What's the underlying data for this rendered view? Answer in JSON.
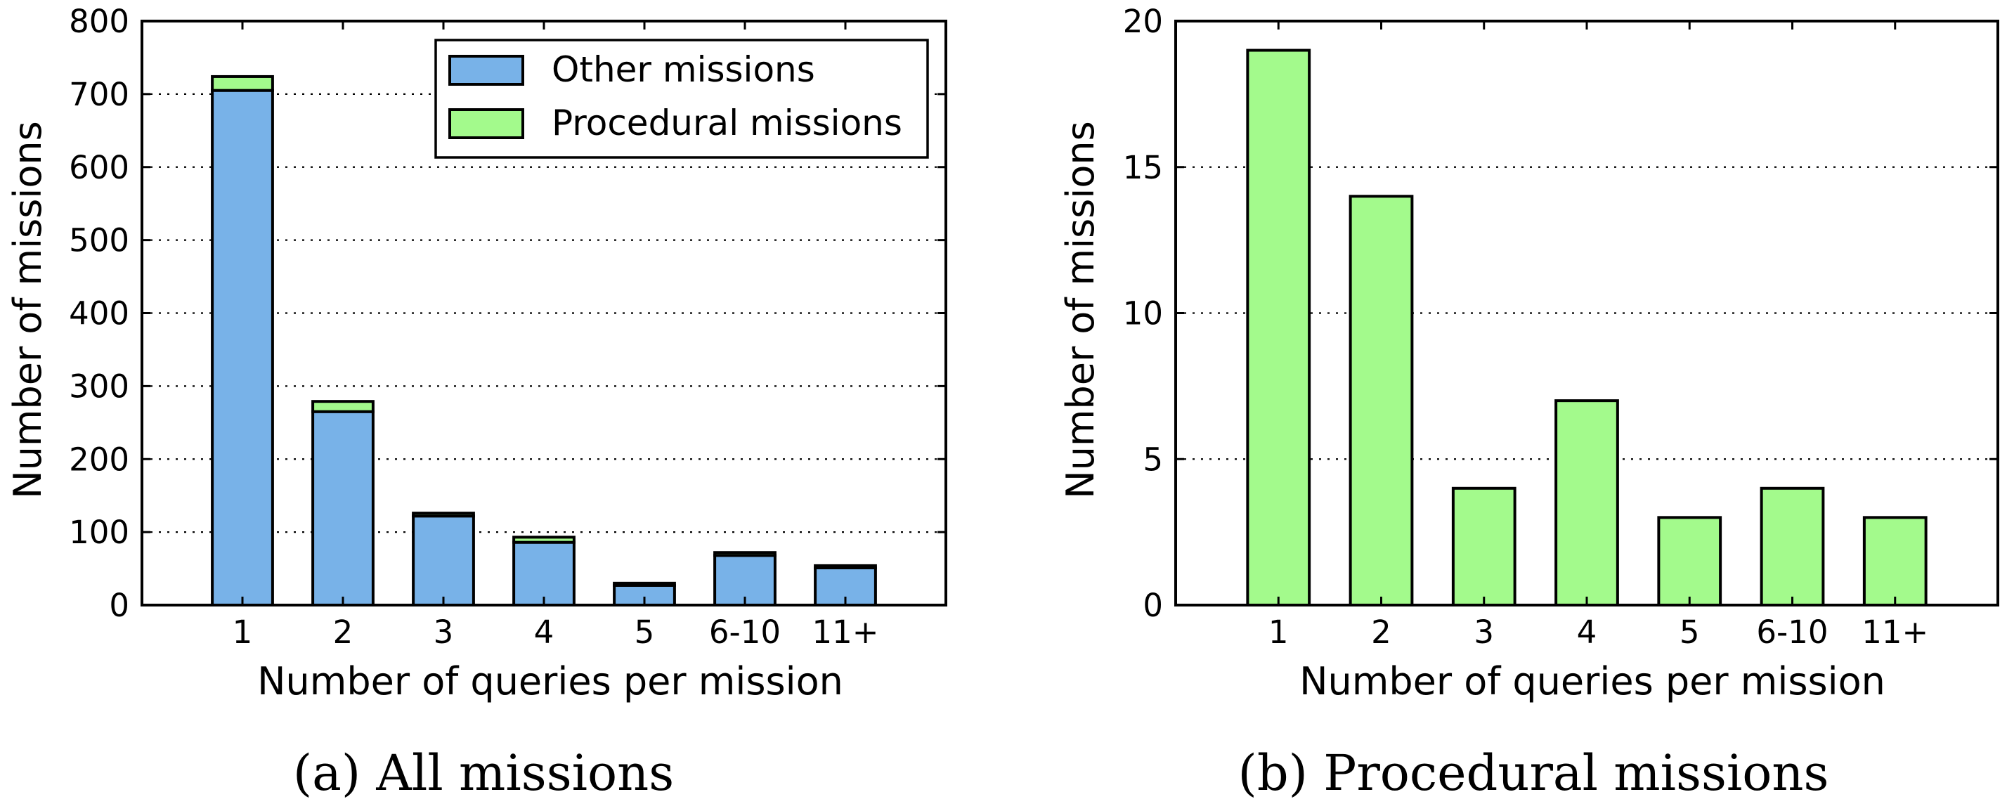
{
  "colors": {
    "other": "#78b2e8",
    "procedural": "#a3fa8c"
  },
  "chart_data": [
    {
      "type": "bar",
      "stacked": true,
      "title": "",
      "caption": "(a) All missions",
      "xlabel": "Number of queries per mission",
      "ylabel": "Number of missions",
      "categories": [
        "1",
        "2",
        "3",
        "4",
        "5",
        "6-10",
        "11+"
      ],
      "ylim": [
        0,
        800
      ],
      "yticks": [
        "0",
        "100",
        "200",
        "300",
        "400",
        "500",
        "600",
        "700",
        "800"
      ],
      "grid": "horizontal dotted",
      "legend_position": "top-right",
      "series": [
        {
          "name": "Other missions",
          "values": [
            705,
            265,
            122,
            86,
            27,
            68,
            51
          ]
        },
        {
          "name": "Procedural missions",
          "values": [
            19,
            14,
            4,
            7,
            3,
            4,
            3
          ]
        }
      ]
    },
    {
      "type": "bar",
      "title": "",
      "caption": "(b) Procedural missions",
      "xlabel": "Number of queries per mission",
      "ylabel": "Number of missions",
      "categories": [
        "1",
        "2",
        "3",
        "4",
        "5",
        "6-10",
        "11+"
      ],
      "ylim": [
        0,
        20
      ],
      "yticks": [
        "0",
        "5",
        "10",
        "15",
        "20"
      ],
      "grid": "horizontal dotted",
      "series": [
        {
          "values": [
            19,
            14,
            4,
            7,
            3,
            4,
            3
          ]
        }
      ]
    }
  ]
}
